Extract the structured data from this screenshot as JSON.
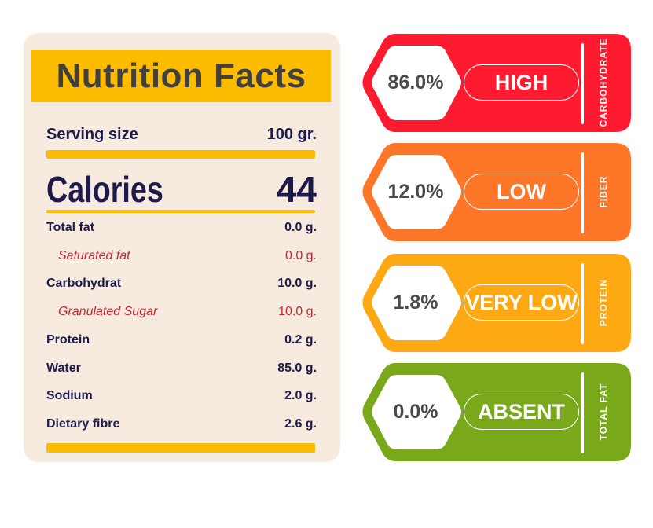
{
  "nutrition": {
    "title": "Nutrition Facts",
    "serving_label": "Serving size",
    "serving_value": "100 gr.",
    "calories_label": "Calories",
    "calories_value": "44",
    "rows": [
      {
        "label": "Total fat",
        "value": "0.0 g.",
        "sub": false
      },
      {
        "label": "Saturated fat",
        "value": "0.0 g.",
        "sub": true
      },
      {
        "label": "Carbohydrat",
        "value": "10.0 g.",
        "sub": false
      },
      {
        "label": "Granulated Sugar",
        "value": "10.0 g.",
        "sub": true
      },
      {
        "label": "Protein",
        "value": "0.2 g.",
        "sub": false
      },
      {
        "label": "Water",
        "value": "85.0 g.",
        "sub": false
      },
      {
        "label": "Sodium",
        "value": "2.0 g.",
        "sub": false
      },
      {
        "label": "Dietary fibre",
        "value": "2.6 g.",
        "sub": false
      }
    ],
    "accent": "#fdbc00"
  },
  "tags": [
    {
      "percent": "86.0%",
      "level": "HIGH",
      "nutrient": "CARBOHYDRATE",
      "color": "#fe1a2f"
    },
    {
      "percent": "12.0%",
      "level": "LOW",
      "nutrient": "FIBER",
      "color": "#fe7627"
    },
    {
      "percent": "1.8%",
      "level": "VERY LOW",
      "nutrient": "PROTEIN",
      "color": "#fea914"
    },
    {
      "percent": "0.0%",
      "level": "ABSENT",
      "nutrient": "TOTAL FAT",
      "color": "#7aa81b"
    }
  ]
}
